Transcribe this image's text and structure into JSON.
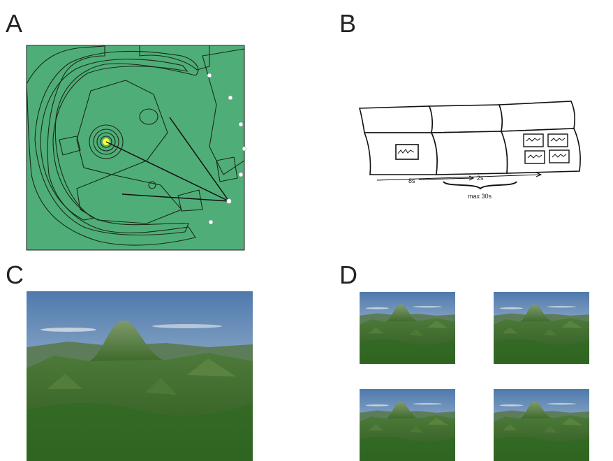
{
  "panels": [
    {
      "label": "A"
    },
    {
      "label": "B",
      "annotations": [
        "8s",
        "2s",
        "max 30s"
      ]
    },
    {
      "label": "C"
    },
    {
      "label": "D"
    }
  ]
}
